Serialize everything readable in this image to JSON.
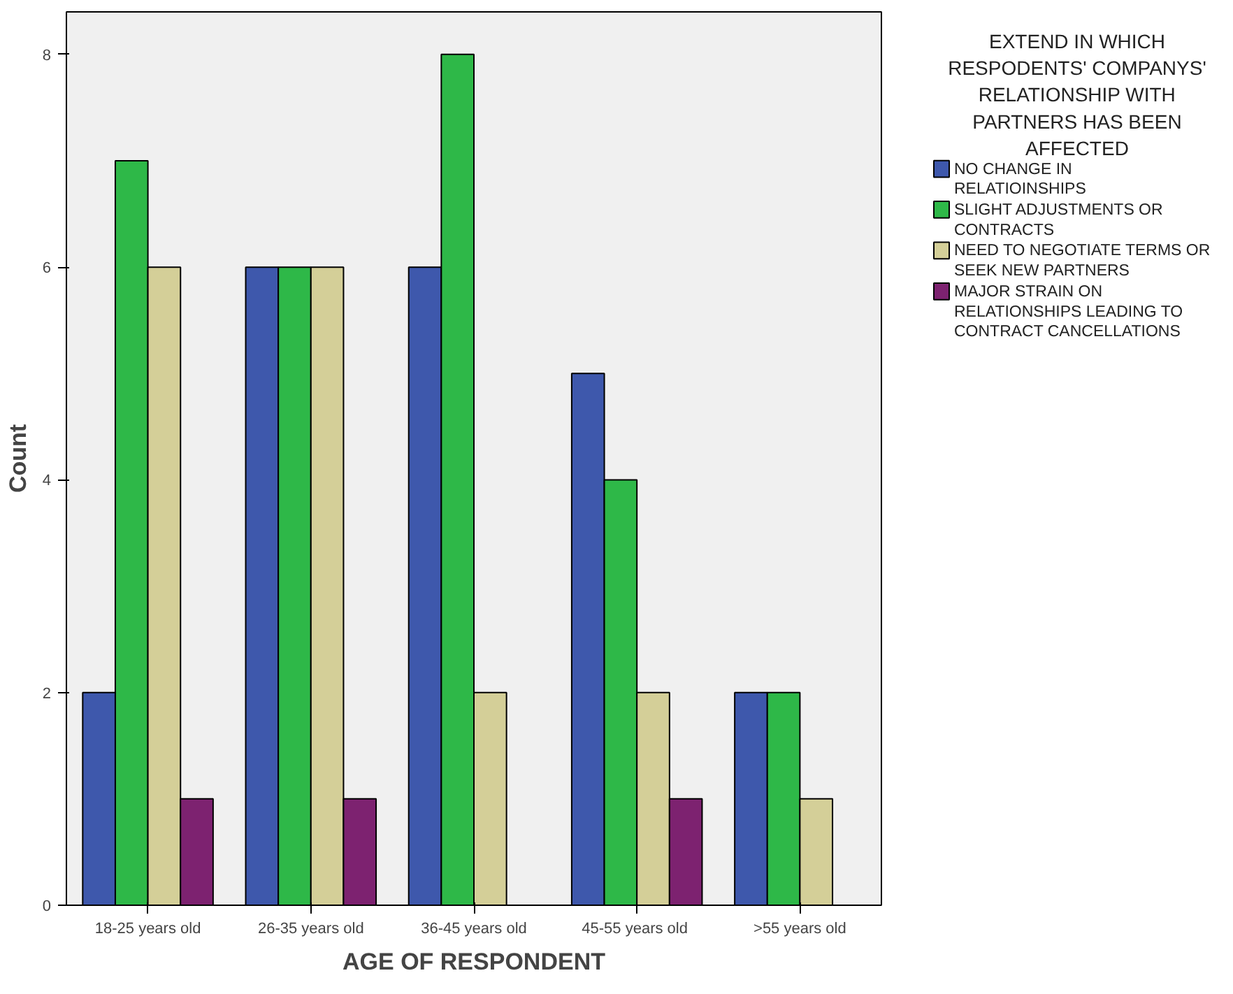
{
  "chart_data": {
    "type": "bar",
    "xlabel": "AGE OF RESPONDENT",
    "ylabel": "Count",
    "legend_title": "EXTEND IN WHICH RESPODENTS' COMPANYS' RELATIONSHIP WITH PARTNERS HAS BEEN AFFECTED",
    "categories": [
      "18-25 years old",
      "26-35 years old",
      "36-45 years old",
      "45-55  years old",
      ">55 years old"
    ],
    "series": [
      {
        "name": "NO CHANGE IN RELATIOINSHIPS",
        "color": "#3e58ac",
        "values": [
          2,
          6,
          6,
          5,
          2
        ]
      },
      {
        "name": "SLIGHT ADJUSTMENTS OR CONTRACTS",
        "color": "#2eb848",
        "values": [
          7,
          6,
          8,
          4,
          2
        ]
      },
      {
        "name": "NEED TO NEGOTIATE TERMS OR SEEK NEW PARTNERS",
        "color": "#d4cf98",
        "values": [
          6,
          6,
          2,
          2,
          1
        ]
      },
      {
        "name": "MAJOR STRAIN ON RELATIONSHIPS LEADING TO CONTRACT CANCELLATIONS",
        "color": "#7d2270",
        "values": [
          1,
          1,
          null,
          1,
          null
        ]
      }
    ],
    "ylim": [
      0,
      8.4
    ],
    "yticks": [
      0,
      2,
      4,
      6,
      8
    ],
    "grid": false,
    "legend": "right"
  }
}
